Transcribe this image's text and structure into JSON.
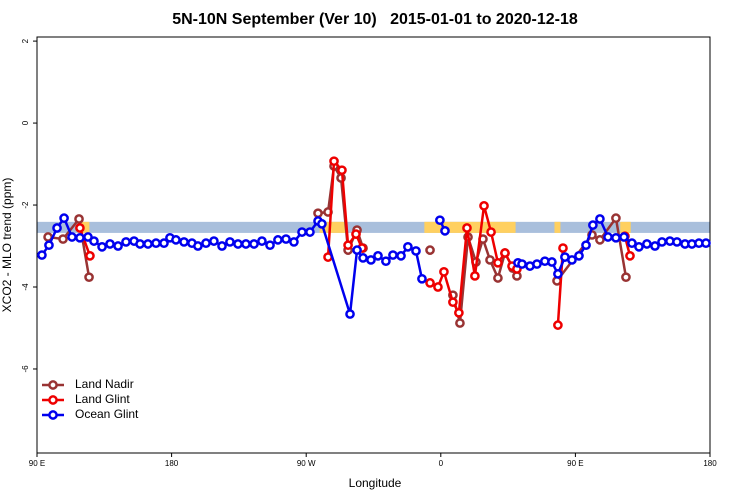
{
  "chart_data": {
    "type": "line",
    "title": "5N-10N September (Ver 10)   2015-01-01 to 2020-12-18",
    "x_label": "Longitude",
    "y_label": "XCO2 - MLO trend (ppm)",
    "xlim": [
      90,
      540
    ],
    "xticks": [
      {
        "value": 90,
        "label": "90 E"
      },
      180,
      {
        "value": 270,
        "label": "90 W"
      },
      {
        "value": 360,
        "label": "0"
      },
      {
        "value": 450,
        "label": "90 E"
      },
      {
        "value": 540,
        "label": "180"
      }
    ],
    "ylim": [
      -8.05,
      2.1
    ],
    "yticks": [
      2,
      0,
      -2,
      -4,
      -6
    ],
    "legend": "bottom-left",
    "band": {
      "y": [
        -2.68,
        -2.41
      ],
      "color": "#a9bfdc",
      "highlight_color": "#ffd060",
      "highlights": [
        [
          119,
          125
        ],
        [
          279,
          296
        ],
        [
          349,
          410
        ],
        [
          436,
          440
        ],
        [
          480,
          487
        ]
      ]
    },
    "series": [
      {
        "name": "Land Nadir",
        "color": "#993333",
        "x": [
          97.4,
          107.4,
          118.1,
          124.8,
          200,
          277.9,
          284.6,
          288.6,
          293.3,
          298,
          304,
          308,
          330,
          352.8,
          360,
          368.1,
          372.8,
          378.2,
          383.5,
          388.2,
          392.9,
          398.2,
          402.9,
          408.2,
          410.9,
          425,
          437.7,
          461.1,
          466.4,
          477.1,
          483.8
        ],
        "values": [
          -2.78,
          -2.83,
          -2.34,
          -3.76,
          null,
          -2.2,
          -2.17,
          -1.05,
          -1.34,
          -3.1,
          -2.61,
          -3.05,
          null,
          -3.1,
          null,
          -4.2,
          -4.88,
          -2.78,
          -3.39,
          -2.83,
          -3.34,
          -3.78,
          -3.17,
          -3.54,
          -3.73,
          null,
          -3.85,
          -2.73,
          -2.85,
          -2.32,
          -3.76
        ]
      },
      {
        "name": "Land Glint",
        "color": "#ee0000",
        "x": [
          118.7,
          125.4,
          200,
          284.6,
          288.6,
          293.9,
          298,
          303.3,
          307.3,
          330,
          352.8,
          358.1,
          362.1,
          368.1,
          372.1,
          377.5,
          382.8,
          388.9,
          393.6,
          398.2,
          402.9,
          407.6,
          410.9,
          425,
          438.3,
          441.7,
          460,
          483.1,
          486.5
        ],
        "values": [
          -2.56,
          -3.24,
          null,
          -3.27,
          -0.93,
          -1.15,
          -2.98,
          -2.71,
          -3.05,
          null,
          -3.9,
          -4.0,
          -3.63,
          -4.37,
          -4.63,
          -2.56,
          -3.73,
          -2.02,
          -2.66,
          -3.41,
          -3.17,
          -3.49,
          -3.56,
          null,
          -4.93,
          -3.05,
          null,
          -2.76,
          -3.24
        ]
      },
      {
        "name": "Ocean Glint",
        "color": "#0000ee",
        "x": [
          93.3,
          98,
          103.4,
          108.1,
          113.4,
          118.7,
          124.1,
          128.1,
          133.5,
          138.8,
          144.2,
          149.5,
          154.9,
          158.9,
          164.2,
          169.6,
          174.9,
          178.9,
          182.9,
          188.3,
          193.6,
          197.6,
          203,
          208.3,
          213.7,
          219,
          224.4,
          229.7,
          235.1,
          240.4,
          245.8,
          251.1,
          256.5,
          261.8,
          267.2,
          272.5,
          277.9,
          280.5,
          299.3,
          304,
          308,
          313.3,
          318,
          323.3,
          328,
          333.4,
          338,
          343.4,
          347.4,
          352,
          359.4,
          362.8,
          390,
          411.6,
          414.3,
          419.6,
          424.3,
          429.6,
          434.3,
          438.3,
          443,
          447.7,
          452.4,
          457.1,
          461.7,
          466.4,
          471.8,
          477.1,
          482.5,
          487.8,
          492.5,
          497.8,
          503.2,
          507.9,
          513.2,
          517.9,
          523.3,
          527.9,
          532.6,
          537.3
        ],
        "values": [
          -3.22,
          -2.98,
          -2.56,
          -2.32,
          -2.78,
          -2.8,
          -2.78,
          -2.88,
          -3.02,
          -2.95,
          -3.0,
          -2.9,
          -2.88,
          -2.95,
          -2.95,
          -2.93,
          -2.93,
          -2.8,
          -2.85,
          -2.9,
          -2.93,
          -3.0,
          -2.93,
          -2.88,
          -3.0,
          -2.9,
          -2.95,
          -2.95,
          -2.95,
          -2.88,
          -2.98,
          -2.85,
          -2.83,
          -2.9,
          -2.66,
          -2.66,
          -2.39,
          -2.46,
          -4.66,
          -3.1,
          -3.29,
          -3.34,
          -3.24,
          -3.37,
          -3.22,
          -3.24,
          -3.02,
          -3.12,
          -3.8,
          null,
          -2.37,
          -2.63,
          null,
          -3.41,
          -3.44,
          -3.49,
          -3.44,
          -3.37,
          -3.39,
          -3.68,
          -3.27,
          -3.34,
          -3.24,
          -2.98,
          -2.49,
          -2.34,
          -2.78,
          -2.8,
          -2.78,
          -2.93,
          -3.02,
          -2.95,
          -3.0,
          -2.9,
          -2.88,
          -2.9,
          -2.95,
          -2.95,
          -2.93,
          -2.93
        ]
      }
    ]
  }
}
